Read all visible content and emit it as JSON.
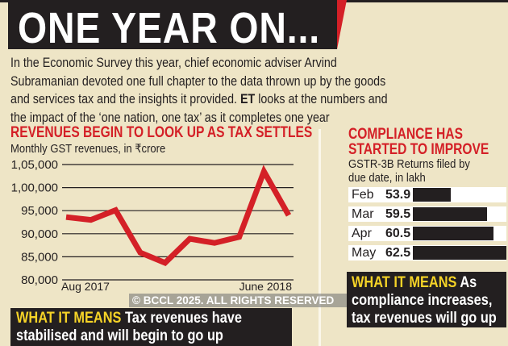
{
  "header": {
    "title": "ONE YEAR ON...",
    "intro_lines": [
      "In the Economic Survey this year, chief economic adviser Arvind",
      "Subramanian devoted one full chapter to the data thrown up by the goods",
      "and services tax and the insights it provided. ",
      "the impact of the ‘one nation, one tax’ as it completes one year"
    ],
    "intro_bold": "ET",
    "intro_line3_tail": " looks at the numbers and"
  },
  "colors": {
    "accent_red": "#d42027",
    "dark": "#231f20",
    "highlight_yellow": "#f5d327",
    "background": "#eee5c6"
  },
  "chart_data": [
    {
      "type": "line",
      "title": "REVENUES BEGIN TO LOOK UP AS TAX SETTLES",
      "subtitle": "Monthly GST revenues, in ₹crore",
      "x_tick_labels": [
        "Aug 2017",
        "June 2018"
      ],
      "values": [
        93600,
        93000,
        95100,
        85900,
        83700,
        88900,
        88000,
        89300,
        103500,
        94000
      ],
      "y_ticks": [
        "1,05,000",
        "1,00,000",
        "95,000",
        "90,000",
        "85,000",
        "80,000"
      ],
      "ylim": [
        80000,
        105000
      ],
      "grid": true,
      "series_color": "#d42027"
    },
    {
      "type": "bar",
      "orientation": "horizontal",
      "title_lines": [
        "COMPLIANCE HAS",
        "STARTED TO IMPROVE"
      ],
      "subtitle_lines": [
        "GSTR-3B Returns filed by",
        "due date, in lakh"
      ],
      "categories": [
        "Feb",
        "Mar",
        "Apr",
        "May"
      ],
      "values": [
        53.9,
        59.5,
        60.5,
        62.5
      ],
      "value_labels": [
        "53.9",
        "59.5",
        "60.5",
        "62.5"
      ]
    }
  ],
  "what_it_means": {
    "label": "WHAT IT MEANS",
    "left": [
      "Tax revenues have",
      "stabilised and will begin to go up"
    ],
    "right": [
      "As",
      "compliance increases,",
      "tax revenues will go up"
    ]
  },
  "watermark": "© BCCL 2025. ALL RIGHTS RESERVED"
}
